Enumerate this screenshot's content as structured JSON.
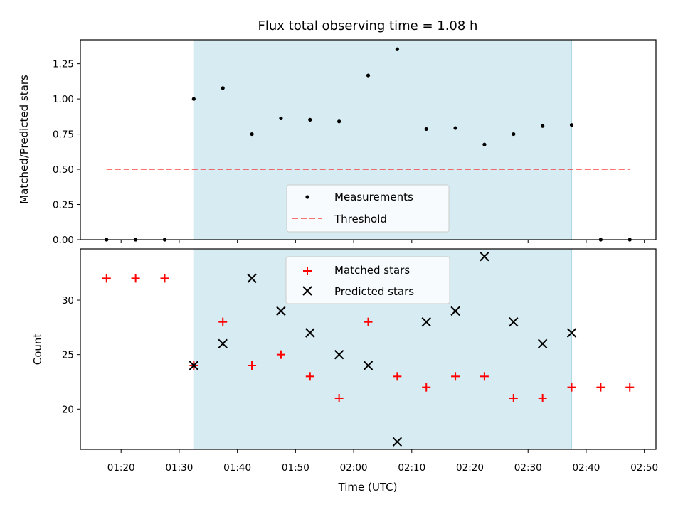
{
  "colors": {
    "highlight_band": "#add8e6",
    "measurements": "#000000",
    "threshold": "#ff0000",
    "matched": "#ff0000",
    "predicted": "#000000"
  },
  "chart_data": [
    {
      "type": "scatter",
      "title": "Flux total observing time = 1.08 h",
      "ylabel": "Matched/Predicted stars",
      "ylim": [
        0,
        1.42
      ],
      "xlim": [
        "01:13",
        "02:52"
      ],
      "yticks": [
        "0.00",
        "0.25",
        "0.50",
        "0.75",
        "1.00",
        "1.25"
      ],
      "highlight_span": [
        "01:32:30",
        "02:37:30"
      ],
      "series": [
        {
          "name": "Measurements",
          "marker": "dot",
          "x": [
            "01:17:30",
            "01:22:30",
            "01:27:30",
            "01:32:30",
            "01:37:30",
            "01:42:30",
            "01:47:30",
            "01:52:30",
            "01:57:30",
            "02:02:30",
            "02:07:30",
            "02:12:30",
            "02:17:30",
            "02:22:30",
            "02:27:30",
            "02:32:30",
            "02:37:30",
            "02:42:30",
            "02:47:30"
          ],
          "y": [
            0,
            0,
            0,
            1.0,
            1.077,
            0.75,
            0.862,
            0.852,
            0.84,
            1.167,
            1.353,
            0.786,
            0.793,
            0.676,
            0.75,
            0.808,
            0.815,
            0,
            0
          ]
        },
        {
          "name": "Threshold",
          "marker": "dashed-line",
          "x": [
            "01:17:30",
            "02:47:30"
          ],
          "y": [
            0.5,
            0.5
          ]
        }
      ],
      "legend": "lower-center"
    },
    {
      "type": "scatter",
      "xlabel": "Time (UTC)",
      "ylabel": "Count",
      "ylim": [
        16.3,
        34.7
      ],
      "xlim": [
        "01:13",
        "02:52"
      ],
      "yticks": [
        "20",
        "25",
        "30"
      ],
      "xticks": [
        "01:20",
        "01:30",
        "01:40",
        "01:50",
        "02:00",
        "02:10",
        "02:20",
        "02:30",
        "02:40",
        "02:50"
      ],
      "highlight_span": [
        "01:32:30",
        "02:37:30"
      ],
      "series": [
        {
          "name": "Matched stars",
          "marker": "plus",
          "x": [
            "01:17:30",
            "01:22:30",
            "01:27:30",
            "01:32:30",
            "01:37:30",
            "01:42:30",
            "01:47:30",
            "01:52:30",
            "01:57:30",
            "02:02:30",
            "02:07:30",
            "02:12:30",
            "02:17:30",
            "02:22:30",
            "02:27:30",
            "02:32:30",
            "02:37:30",
            "02:42:30",
            "02:47:30"
          ],
          "y": [
            32,
            32,
            32,
            24,
            28,
            24,
            25,
            23,
            21,
            28,
            23,
            22,
            23,
            23,
            21,
            21,
            22,
            22,
            22
          ]
        },
        {
          "name": "Predicted stars",
          "marker": "x",
          "x": [
            "01:32:30",
            "01:37:30",
            "01:42:30",
            "01:47:30",
            "01:52:30",
            "01:57:30",
            "02:02:30",
            "02:07:30",
            "02:12:30",
            "02:17:30",
            "02:22:30",
            "02:27:30",
            "02:32:30",
            "02:37:30"
          ],
          "y": [
            24,
            26,
            32,
            29,
            27,
            25,
            24,
            17,
            28,
            29,
            34,
            28,
            26,
            27
          ]
        }
      ],
      "legend": "upper-center"
    }
  ]
}
